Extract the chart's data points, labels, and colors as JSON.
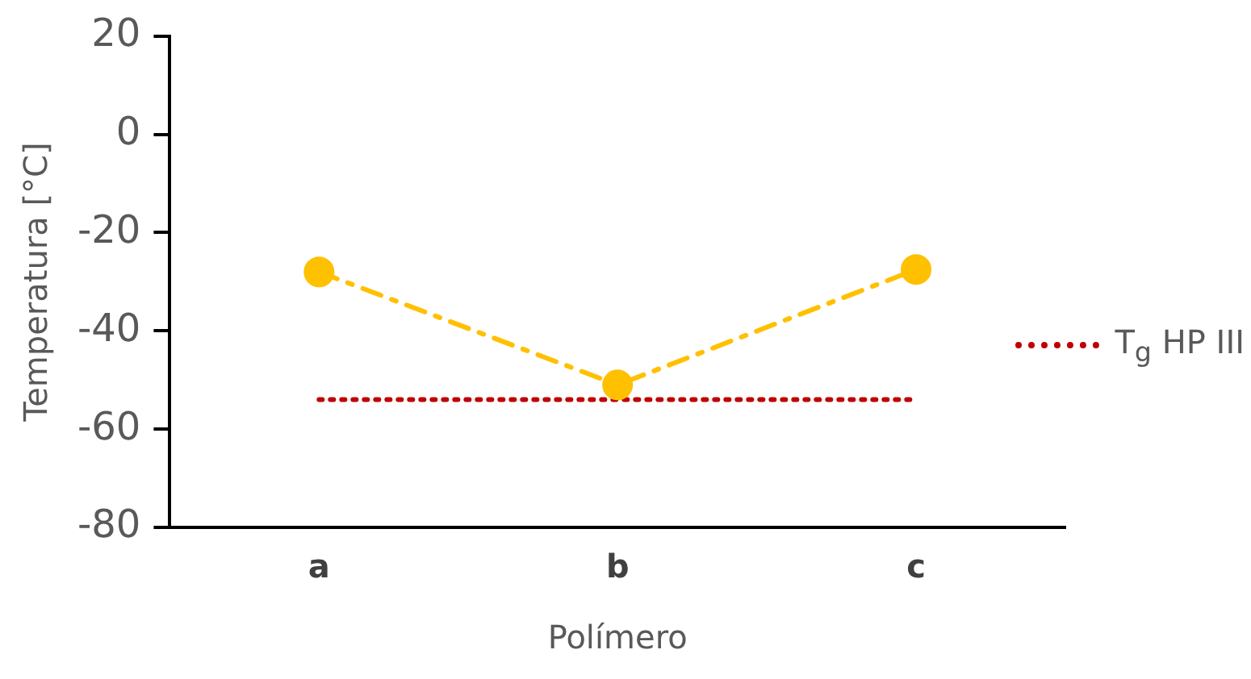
{
  "chart_data": {
    "type": "line",
    "xlabel": "Polímero",
    "ylabel": "Temperatura [°C]",
    "categories": [
      "a",
      "b",
      "c"
    ],
    "series": [
      {
        "color": "#ffc000",
        "values": [
          -28,
          -51,
          -27.5
        ],
        "marker": "circle",
        "line_style": "dashed"
      },
      {
        "name": "T$_{g}$ HP III",
        "color": "#c00000",
        "values": [
          -54,
          -54,
          -54
        ],
        "marker": "none",
        "line_style": "dotted"
      }
    ],
    "ylim": [
      -80,
      20
    ],
    "yticks": [
      -80,
      -60,
      -40,
      -20,
      0,
      20
    ],
    "grid": false,
    "legend": "right"
  }
}
